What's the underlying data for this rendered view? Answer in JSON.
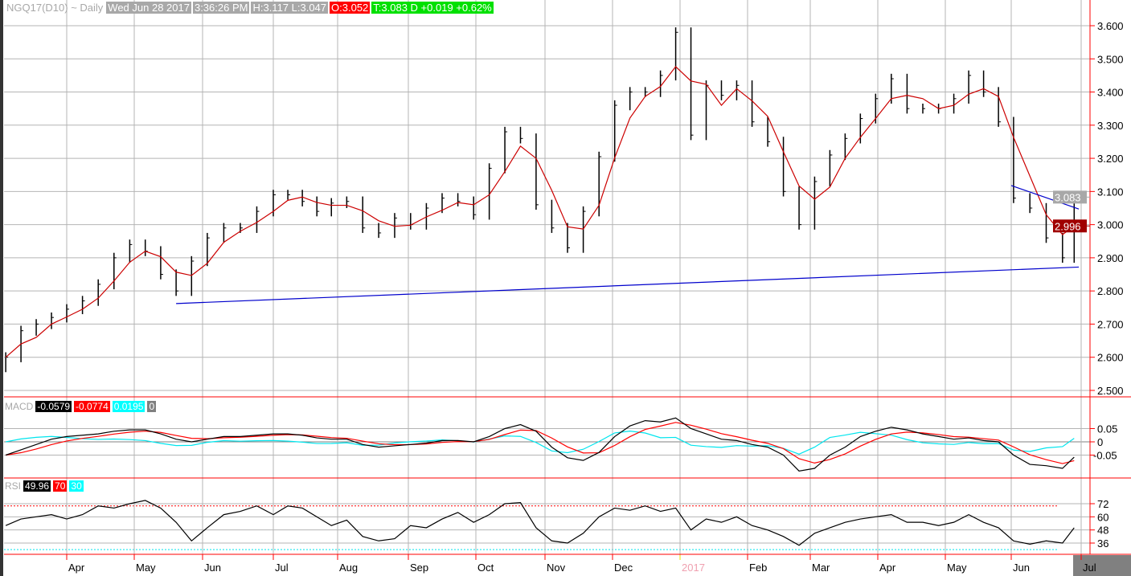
{
  "header": {
    "symbol": "NGQ17(D10) ~ Daily",
    "date": "Wed Jun 28 2017",
    "time": "3:36:26 PM",
    "high_low": "H:3.117  L:3.047",
    "open": "O:3.052",
    "last": "T:3.083 D  +0.019  +0.62%"
  },
  "macd_legend": {
    "label": "MACD",
    "macd": "-0.0579",
    "signal": "-0.0774",
    "hist": "0.0195",
    "zero": "0"
  },
  "rsi_legend": {
    "label": "RSI",
    "value": "49.96",
    "upper": "70",
    "lower": "30"
  },
  "colors": {
    "bars": "#000000",
    "ma": "#cc0000",
    "trendline": "#0000cc",
    "macd": "#000000",
    "signal": "#ff0000",
    "hist": "#00e5ee",
    "axis": "#ff0000",
    "last_price": "#a8a8a8",
    "ma_value": "#a00000"
  },
  "chart_data": [
    {
      "type": "bar",
      "panel": "price",
      "x": [
        "2016-03-04",
        "2016-03-11",
        "2016-03-18",
        "2016-03-25",
        "2016-04-01",
        "2016-04-08",
        "2016-04-15",
        "2016-04-22",
        "2016-04-29",
        "2016-05-06",
        "2016-05-13",
        "2016-05-20",
        "2016-05-27",
        "2016-06-03",
        "2016-06-10",
        "2016-06-17",
        "2016-06-24",
        "2016-07-01",
        "2016-07-08",
        "2016-07-15",
        "2016-07-22",
        "2016-07-29",
        "2016-08-05",
        "2016-08-12",
        "2016-08-19",
        "2016-08-26",
        "2016-09-02",
        "2016-09-09",
        "2016-09-16",
        "2016-09-23",
        "2016-09-30",
        "2016-10-07",
        "2016-10-14",
        "2016-10-21",
        "2016-10-28",
        "2016-11-04",
        "2016-11-11",
        "2016-11-18",
        "2016-11-25",
        "2016-12-02",
        "2016-12-09",
        "2016-12-16",
        "2016-12-23",
        "2016-12-30",
        "2017-01-06",
        "2017-01-13",
        "2017-01-20",
        "2017-01-27",
        "2017-02-03",
        "2017-02-10",
        "2017-02-17",
        "2017-02-24",
        "2017-03-03",
        "2017-03-10",
        "2017-03-17",
        "2017-03-24",
        "2017-03-31",
        "2017-04-07",
        "2017-04-14",
        "2017-04-21",
        "2017-04-28",
        "2017-05-05",
        "2017-05-12",
        "2017-05-19",
        "2017-05-26",
        "2017-06-02",
        "2017-06-09",
        "2017-06-16",
        "2017-06-23",
        "2017-06-28"
      ],
      "close": [
        2.6,
        2.68,
        2.7,
        2.72,
        2.745,
        2.77,
        2.82,
        2.9,
        2.94,
        2.92,
        2.85,
        2.8,
        2.89,
        2.96,
        2.99,
        2.99,
        3.04,
        3.09,
        3.09,
        3.07,
        3.04,
        3.065,
        3.07,
        2.99,
        2.975,
        3.02,
        3.0,
        3.05,
        3.08,
        3.07,
        3.03,
        3.17,
        3.28,
        3.26,
        3.06,
        2.99,
        2.93,
        3.04,
        3.205,
        3.36,
        3.4,
        3.4,
        3.45,
        3.58,
        3.27,
        3.42,
        3.39,
        3.42,
        3.31,
        3.25,
        3.1,
        3.0,
        3.13,
        3.21,
        3.26,
        3.32,
        3.38,
        3.44,
        3.35,
        3.35,
        3.35,
        3.38,
        3.45,
        3.4,
        3.31,
        3.08,
        3.05,
        2.96,
        2.9,
        3.083
      ],
      "ylim": [
        2.48,
        3.64
      ],
      "yticks": [
        "3.600",
        "3.500",
        "3.400",
        "3.300",
        "3.200",
        "3.100",
        "3.000",
        "2.900",
        "2.800",
        "2.700",
        "2.600",
        "2.500"
      ],
      "last_price_label": "3.083",
      "ma_value_label": "2.996",
      "trendlines": [
        {
          "start": [
            "2016-05-20",
            2.762
          ],
          "end": [
            "2017-06-30",
            2.872
          ]
        },
        {
          "start": [
            "2017-06-01",
            3.118
          ],
          "end": [
            "2017-06-30",
            3.047
          ]
        }
      ],
      "grid": true
    },
    {
      "type": "line",
      "panel": "macd",
      "macd": [
        -0.05,
        -0.03,
        -0.01,
        0.01,
        0.02,
        0.025,
        0.03,
        0.04,
        0.045,
        0.045,
        0.03,
        0.01,
        0.0,
        0.01,
        0.02,
        0.02,
        0.025,
        0.03,
        0.03,
        0.025,
        0.015,
        0.01,
        0.01,
        -0.01,
        -0.02,
        -0.015,
        -0.01,
        -0.005,
        0.005,
        0.005,
        0.0,
        0.02,
        0.05,
        0.065,
        0.04,
        -0.02,
        -0.06,
        -0.07,
        -0.04,
        0.02,
        0.06,
        0.08,
        0.075,
        0.09,
        0.05,
        0.03,
        0.01,
        0.005,
        -0.01,
        -0.02,
        -0.05,
        -0.11,
        -0.1,
        -0.05,
        -0.02,
        0.02,
        0.04,
        0.055,
        0.045,
        0.03,
        0.02,
        0.01,
        0.015,
        0.005,
        0.0,
        -0.05,
        -0.085,
        -0.09,
        -0.1,
        -0.0579
      ],
      "yticks": [
        "0.05",
        "0",
        "-0.05"
      ],
      "ylim": [
        -0.14,
        0.12
      ]
    },
    {
      "type": "line",
      "panel": "rsi",
      "rsi": [
        52,
        58,
        60,
        62,
        58,
        62,
        70,
        68,
        72,
        75,
        68,
        55,
        38,
        50,
        62,
        65,
        70,
        62,
        70,
        68,
        60,
        52,
        57,
        42,
        38,
        40,
        52,
        50,
        58,
        64,
        55,
        62,
        72,
        73,
        50,
        38,
        36,
        45,
        60,
        68,
        66,
        70,
        65,
        68,
        48,
        58,
        55,
        60,
        52,
        48,
        42,
        34,
        45,
        50,
        55,
        58,
        60,
        62,
        55,
        55,
        52,
        55,
        62,
        55,
        50,
        38,
        35,
        38,
        36,
        49.96
      ],
      "levels": [
        70,
        30
      ],
      "yticks": [
        "72",
        "60",
        "48",
        "36"
      ]
    }
  ],
  "x_axis": {
    "months": [
      "Apr",
      "May",
      "Jun",
      "Jul",
      "Aug",
      "Sep",
      "Oct",
      "Nov",
      "Dec",
      "2017",
      "Feb",
      "Mar",
      "Apr",
      "May",
      "Jun",
      "Jul"
    ]
  }
}
